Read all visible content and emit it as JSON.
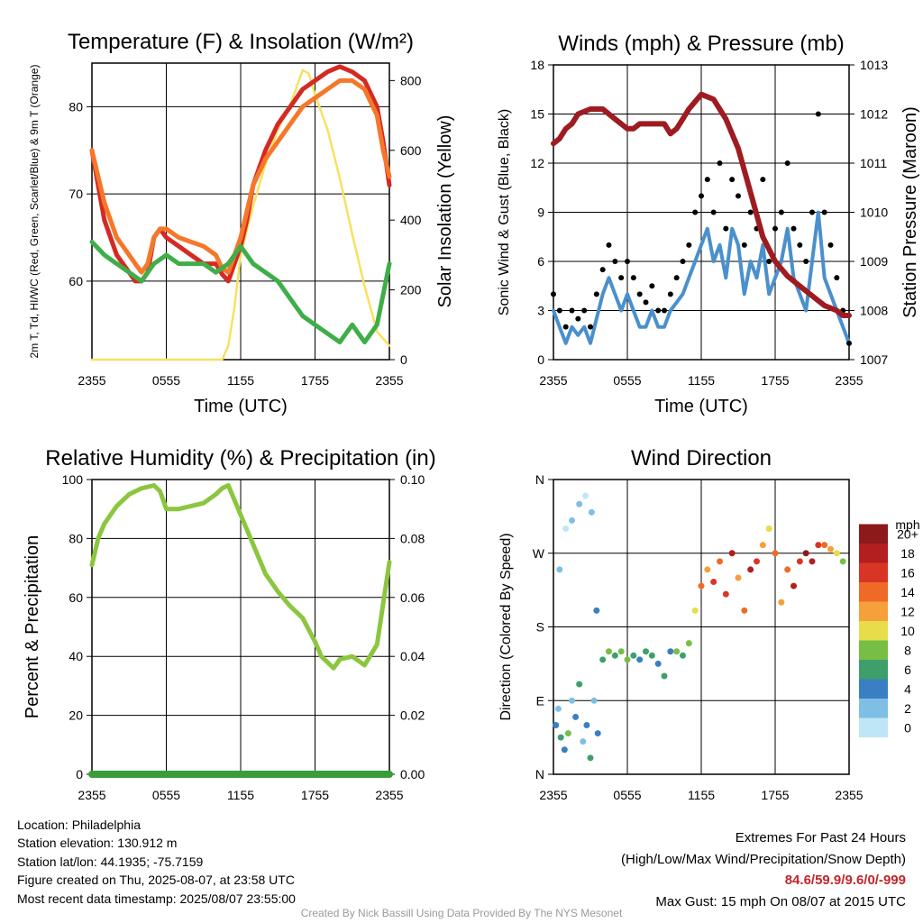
{
  "meta": {
    "location": "Location: Philadelphia",
    "elevation": "Station elevation: 130.912 m",
    "latlon": "Station lat/lon: 44.1935; -75.7159",
    "created": "Figure created on Thu, 2025-08-07, at 23:58 UTC",
    "recent": "Most recent data timestamp: 2025/08/07 23:55:00",
    "extremes_title": "Extremes For Past 24 Hours",
    "extremes_legend": "(High/Low/Max Wind/Precipitation/Snow Depth)",
    "extremes_values": "84.6/59.9/9.6/0/-999",
    "max_gust": "Max Gust: 15 mph On 08/07 at 2015 UTC",
    "credit": "Created By Nick Bassill Using Data Provided By The NYS Mesonet"
  },
  "colors": {
    "temp": "#d42a24",
    "heat_index": "#f5782a",
    "dewpoint": "#3fae49",
    "solar": "#f7e160",
    "sonic_wind": "#4a90cc",
    "gust": "#000000",
    "pressure": "#9e1c21",
    "rh": "#8cc63f",
    "precip": "#3a9d3a"
  },
  "chart_data": [
    {
      "type": "line",
      "title": "Temperature (F) & Insolation (W/m²)",
      "xlabel": "Time (UTC)",
      "ylabel": "2m T, Td, HI/WC (Red, Green, Scarlet/Blue) & 9m T (Orange)",
      "y2label": "Solar Insolation (Yellow)",
      "xticks": [
        "2355",
        "0555",
        "1155",
        "1755",
        "2355"
      ],
      "xlim": [
        0,
        24
      ],
      "ylim": [
        51,
        85
      ],
      "y2lim": [
        0,
        850
      ],
      "yticks": [
        60,
        70,
        80
      ],
      "y2ticks": [
        0,
        200,
        400,
        600,
        800
      ],
      "series": [
        {
          "key": "t2m",
          "axis": "left",
          "color_key": "temp",
          "x": [
            0,
            0.5,
            1,
            1.5,
            2,
            2.5,
            3,
            3.5,
            4,
            4.5,
            5,
            5.5,
            6,
            7,
            8,
            9,
            10,
            10.5,
            11,
            11.5,
            12,
            12.5,
            13,
            14,
            15,
            16,
            17,
            18,
            19,
            20,
            21,
            22,
            23,
            23.5,
            24
          ],
          "y": [
            75,
            71,
            67,
            65,
            63,
            62,
            61,
            60,
            60,
            61,
            65,
            66,
            65,
            64,
            63,
            62,
            62,
            60.8,
            60,
            62,
            64,
            67,
            71,
            75,
            78,
            80,
            82,
            83,
            84,
            84.6,
            84,
            83,
            80,
            76,
            71
          ]
        },
        {
          "key": "t9m",
          "axis": "left",
          "color_key": "heat_index",
          "x": [
            0,
            0.5,
            1,
            1.5,
            2,
            2.5,
            3,
            3.5,
            4,
            4.5,
            5,
            5.5,
            6,
            7,
            8,
            9,
            10,
            10.5,
            11,
            11.5,
            12,
            12.5,
            13,
            14,
            15,
            16,
            17,
            18,
            19,
            20,
            21,
            22,
            23,
            23.5,
            24
          ],
          "y": [
            75,
            72,
            69,
            67,
            65,
            64,
            63,
            62,
            61,
            62,
            65,
            66,
            66,
            65,
            64.5,
            64,
            63,
            61.5,
            61,
            63,
            65,
            68,
            71,
            74,
            76,
            78,
            80,
            81,
            82,
            83,
            83,
            82,
            79,
            75,
            72
          ]
        },
        {
          "key": "dewpoint",
          "axis": "left",
          "color_key": "dewpoint",
          "x": [
            0,
            1,
            2,
            3,
            4,
            5,
            6,
            7,
            8,
            9,
            10,
            11,
            12,
            13,
            14,
            15,
            16,
            17,
            18,
            19,
            20,
            21,
            22,
            23,
            24
          ],
          "y": [
            64.5,
            63,
            62,
            61,
            60,
            62,
            63,
            62,
            62,
            62,
            61,
            62,
            64,
            62,
            61,
            60,
            58,
            56,
            55,
            54,
            53,
            55,
            53,
            55,
            62
          ]
        },
        {
          "key": "solar",
          "axis": "right",
          "color_key": "solar",
          "x": [
            0,
            8,
            10.5,
            11,
            11.5,
            12,
            13,
            14,
            15,
            16,
            17,
            17.5,
            18,
            19,
            20,
            21,
            22,
            23,
            24
          ],
          "y": [
            0,
            0,
            0,
            40,
            150,
            300,
            440,
            560,
            660,
            730,
            830,
            820,
            760,
            660,
            520,
            360,
            210,
            80,
            40
          ]
        }
      ]
    },
    {
      "type": "line",
      "title": "Winds (mph) & Pressure (mb)",
      "xlabel": "Time (UTC)",
      "ylabel": "Sonic Wind & Gust (Blue, Black)",
      "y2label": "Station Pressure (Maroon)",
      "xticks": [
        "2355",
        "0555",
        "1155",
        "1755",
        "2355"
      ],
      "xlim": [
        0,
        24
      ],
      "ylim": [
        0,
        18
      ],
      "y2lim": [
        1007,
        1013
      ],
      "yticks": [
        0,
        3,
        6,
        9,
        12,
        15,
        18
      ],
      "y2ticks": [
        1007,
        1008,
        1009,
        1010,
        1011,
        1012,
        1013
      ],
      "series": [
        {
          "key": "wind",
          "axis": "left",
          "color_key": "sonic_wind",
          "x": [
            0,
            0.5,
            1,
            1.5,
            2,
            2.5,
            3,
            3.5,
            4,
            4.5,
            5,
            5.5,
            6,
            6.5,
            7,
            7.5,
            8,
            8.5,
            9,
            9.5,
            10,
            10.5,
            11,
            11.5,
            12,
            12.5,
            13,
            13.5,
            14,
            14.5,
            15,
            15.5,
            16,
            16.5,
            17,
            17.5,
            18,
            18.5,
            19,
            19.5,
            20,
            20.5,
            21,
            21.5,
            22,
            22.5,
            23,
            23.5,
            24
          ],
          "y": [
            3,
            2,
            1,
            2,
            1.5,
            2,
            1,
            2.5,
            4,
            5,
            4,
            3,
            4,
            3,
            2,
            2,
            3,
            2,
            2,
            3,
            3.5,
            4,
            5,
            6,
            7,
            8,
            6,
            7,
            5,
            8,
            7,
            4,
            6,
            5,
            7,
            4,
            5,
            6,
            8,
            5,
            4,
            3,
            6,
            9,
            5,
            4,
            3,
            2,
            1
          ]
        },
        {
          "key": "gust",
          "axis": "left",
          "color_key": "gust",
          "x": [
            0,
            0.5,
            1,
            1.5,
            2,
            2.5,
            3,
            3.5,
            4,
            4.5,
            5,
            5.5,
            6,
            6.5,
            7,
            7.5,
            8,
            8.5,
            9,
            9.5,
            10,
            10.5,
            11,
            11.5,
            12,
            12.5,
            13,
            13.5,
            14,
            14.5,
            15,
            15.5,
            16,
            16.5,
            17,
            17.5,
            18,
            18.5,
            19,
            19.5,
            20,
            20.5,
            21,
            21.5,
            22,
            22.5,
            23,
            23.5,
            24
          ],
          "y": [
            4,
            3,
            2,
            3,
            2.5,
            3,
            2,
            4,
            5.5,
            7,
            6,
            5,
            6,
            5,
            4,
            3.5,
            4.5,
            3,
            3,
            4,
            5,
            6,
            7,
            9,
            10,
            11,
            9,
            12,
            8,
            11,
            10,
            7,
            9,
            8,
            11,
            6,
            8,
            9,
            12,
            8,
            7,
            6,
            9,
            15,
            9,
            7,
            5,
            3,
            1
          ]
        },
        {
          "key": "pressure",
          "axis": "right",
          "color_key": "pressure",
          "x": [
            0,
            0.5,
            1,
            1.5,
            2,
            3,
            4,
            5,
            6,
            6.5,
            7,
            8,
            9,
            9.5,
            10,
            10.5,
            11,
            12,
            13,
            14,
            15,
            16,
            17,
            18,
            19,
            20,
            21,
            22,
            23,
            23.5,
            24
          ],
          "y": [
            1011.4,
            1011.5,
            1011.7,
            1011.8,
            1012,
            1012.1,
            1012.1,
            1011.9,
            1011.7,
            1011.7,
            1011.8,
            1011.8,
            1011.8,
            1011.6,
            1011.7,
            1011.9,
            1012.1,
            1012.4,
            1012.3,
            1011.9,
            1011.3,
            1010.4,
            1009.5,
            1009.0,
            1008.7,
            1008.5,
            1008.3,
            1008.1,
            1008.0,
            1007.9,
            1007.9
          ]
        }
      ]
    },
    {
      "type": "line",
      "title": "Relative Humidity (%) & Precipitation (in)",
      "xlabel": "",
      "ylabel": "Percent & Precipitation",
      "xticks": [
        "2355",
        "0555",
        "1155",
        "1755",
        "2355"
      ],
      "xlim": [
        0,
        24
      ],
      "ylim": [
        0,
        100
      ],
      "y2lim": [
        0,
        0.1
      ],
      "yticks": [
        0,
        20,
        40,
        60,
        80,
        100
      ],
      "y2ticks": [
        "0.00",
        "0.02",
        "0.04",
        "0.06",
        "0.08",
        "0.10"
      ],
      "series": [
        {
          "key": "rh",
          "axis": "left",
          "color_key": "rh",
          "x": [
            0,
            0.5,
            1,
            2,
            3,
            4,
            5,
            5.5,
            6,
            7,
            8,
            9,
            10,
            10.5,
            11,
            12,
            13,
            14,
            15,
            16,
            17,
            18,
            18.5,
            19,
            19.5,
            20,
            21,
            22,
            23,
            24
          ],
          "y": [
            71,
            80,
            85,
            91,
            95,
            97,
            98,
            96,
            90,
            90,
            91,
            92,
            95,
            97,
            98,
            88,
            78,
            68,
            62,
            57,
            53,
            45,
            40,
            38,
            36,
            39,
            40,
            37,
            44,
            72
          ]
        },
        {
          "key": "precip",
          "axis": "right",
          "color_key": "precip",
          "x": [
            0,
            24
          ],
          "y": [
            0,
            0
          ]
        }
      ]
    },
    {
      "type": "scatter",
      "title": "Wind Direction",
      "xlabel": "",
      "ylabel": "Direction (Colored By Speed)",
      "xticks": [
        "2355",
        "0555",
        "1155",
        "1755",
        "2355"
      ],
      "yticks": [
        "N",
        "E",
        "S",
        "W",
        "N"
      ],
      "xlim": [
        0,
        24
      ],
      "ylim": [
        0,
        360
      ],
      "colorbar": {
        "unit": "mph",
        "labels": [
          "0",
          "2",
          "4",
          "6",
          "8",
          "10",
          "12",
          "14",
          "16",
          "18",
          "20+"
        ],
        "colors": [
          "#bfe6f7",
          "#7fbfe6",
          "#3a7fc2",
          "#3f9f6b",
          "#76bf44",
          "#e7dc4a",
          "#f5a03a",
          "#ef6a26",
          "#d93525",
          "#b31e1f",
          "#8c1a1a"
        ]
      },
      "series": [
        {
          "key": "dir",
          "x": [
            0.2,
            0.4,
            0.6,
            0.9,
            1.2,
            1.5,
            1.8,
            2.1,
            2.4,
            2.7,
            3.0,
            3.3,
            3.6,
            0.5,
            1.0,
            1.5,
            2.1,
            2.6,
            3.1,
            3.5,
            4.0,
            4.5,
            5.0,
            5.5,
            6.0,
            6.5,
            7.0,
            7.5,
            8.0,
            8.5,
            9.0,
            9.5,
            10.0,
            10.5,
            11.0,
            11.5,
            12.0,
            12.5,
            13.0,
            13.5,
            14.0,
            14.5,
            15.0,
            15.5,
            16.0,
            16.5,
            17.0,
            17.5,
            18.0,
            18.5,
            19.0,
            19.5,
            20.0,
            20.5,
            21.0,
            21.5,
            22.0,
            22.5,
            23.0,
            23.5
          ],
          "y": [
            60,
            80,
            45,
            30,
            50,
            90,
            70,
            110,
            40,
            60,
            20,
            90,
            50,
            250,
            300,
            310,
            330,
            340,
            320,
            200,
            140,
            150,
            145,
            150,
            140,
            145,
            140,
            150,
            145,
            135,
            120,
            150,
            150,
            145,
            160,
            200,
            230,
            250,
            235,
            260,
            220,
            270,
            240,
            200,
            250,
            260,
            280,
            300,
            270,
            210,
            250,
            230,
            260,
            270,
            260,
            280,
            280,
            275,
            270,
            260
          ],
          "speed": [
            2,
            1,
            3,
            2,
            4,
            1,
            2,
            3,
            1,
            2,
            3,
            1,
            2,
            1,
            0,
            1,
            1,
            0,
            1,
            2,
            3,
            4,
            3,
            4,
            4,
            3,
            2,
            3,
            3,
            2,
            3,
            2,
            4,
            3,
            4,
            5,
            7,
            6,
            8,
            7,
            8,
            9,
            6,
            7,
            9,
            8,
            6,
            5,
            7,
            6,
            7,
            9,
            8,
            10,
            9,
            8,
            7,
            6,
            5,
            4
          ]
        }
      ]
    }
  ]
}
